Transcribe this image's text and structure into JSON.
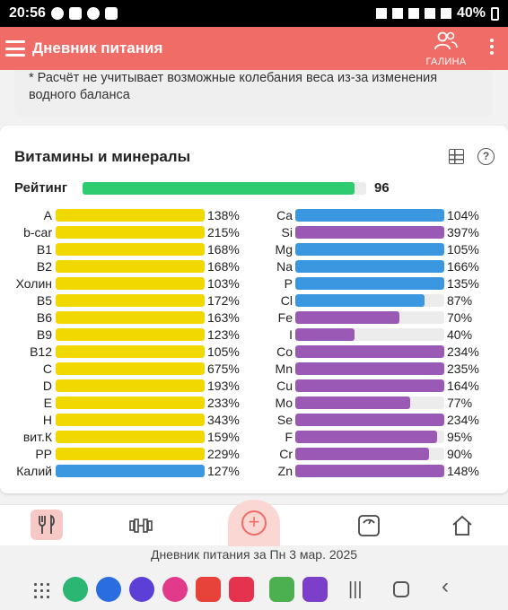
{
  "status": {
    "time": "20:56",
    "battery": "40%"
  },
  "appbar": {
    "title": "Дневник питания",
    "user": "ГАЛИНА"
  },
  "note": "* Расчёт не учитывает возможные колебания веса из-за изменения водного баланса",
  "section": {
    "title": "Витамины и минералы",
    "rating_label": "Рейтинг",
    "rating_value": "96",
    "rating_fraction": 0.96
  },
  "colors": {
    "vitamin": "#f1d800",
    "mineral_blue": "#3a97e0",
    "mineral_purple": "#9b59b6",
    "rating": "#2ecc71",
    "accent": "#ef6d66"
  },
  "vitamins": [
    {
      "name": "A",
      "pct": "138%",
      "fill": 1.0,
      "color": "#f1d800"
    },
    {
      "name": "b-car",
      "pct": "215%",
      "fill": 1.0,
      "color": "#f1d800"
    },
    {
      "name": "B1",
      "pct": "168%",
      "fill": 1.0,
      "color": "#f1d800"
    },
    {
      "name": "B2",
      "pct": "168%",
      "fill": 1.0,
      "color": "#f1d800"
    },
    {
      "name": "Холин",
      "pct": "103%",
      "fill": 1.0,
      "color": "#f1d800"
    },
    {
      "name": "B5",
      "pct": "172%",
      "fill": 1.0,
      "color": "#f1d800"
    },
    {
      "name": "B6",
      "pct": "163%",
      "fill": 1.0,
      "color": "#f1d800"
    },
    {
      "name": "B9",
      "pct": "123%",
      "fill": 1.0,
      "color": "#f1d800"
    },
    {
      "name": "B12",
      "pct": "105%",
      "fill": 1.0,
      "color": "#f1d800"
    },
    {
      "name": "C",
      "pct": "675%",
      "fill": 1.0,
      "color": "#f1d800"
    },
    {
      "name": "D",
      "pct": "193%",
      "fill": 1.0,
      "color": "#f1d800"
    },
    {
      "name": "E",
      "pct": "233%",
      "fill": 1.0,
      "color": "#f1d800"
    },
    {
      "name": "H",
      "pct": "343%",
      "fill": 1.0,
      "color": "#f1d800"
    },
    {
      "name": "вит.К",
      "pct": "159%",
      "fill": 1.0,
      "color": "#f1d800"
    },
    {
      "name": "PP",
      "pct": "229%",
      "fill": 1.0,
      "color": "#f1d800"
    },
    {
      "name": "Калий",
      "pct": "127%",
      "fill": 1.0,
      "color": "#3a97e0"
    }
  ],
  "minerals": [
    {
      "name": "Ca",
      "pct": "104%",
      "fill": 1.0,
      "color": "#3a97e0"
    },
    {
      "name": "Si",
      "pct": "397%",
      "fill": 1.0,
      "color": "#9b59b6"
    },
    {
      "name": "Mg",
      "pct": "105%",
      "fill": 1.0,
      "color": "#3a97e0"
    },
    {
      "name": "Na",
      "pct": "166%",
      "fill": 1.0,
      "color": "#3a97e0"
    },
    {
      "name": "P",
      "pct": "135%",
      "fill": 1.0,
      "color": "#3a97e0"
    },
    {
      "name": "Cl",
      "pct": "87%",
      "fill": 0.87,
      "color": "#3a97e0"
    },
    {
      "name": "Fe",
      "pct": "70%",
      "fill": 0.7,
      "color": "#9b59b6"
    },
    {
      "name": "I",
      "pct": "40%",
      "fill": 0.4,
      "color": "#9b59b6"
    },
    {
      "name": "Co",
      "pct": "234%",
      "fill": 1.0,
      "color": "#9b59b6"
    },
    {
      "name": "Mn",
      "pct": "235%",
      "fill": 1.0,
      "color": "#9b59b6"
    },
    {
      "name": "Cu",
      "pct": "164%",
      "fill": 1.0,
      "color": "#9b59b6"
    },
    {
      "name": "Mo",
      "pct": "77%",
      "fill": 0.77,
      "color": "#9b59b6"
    },
    {
      "name": "Se",
      "pct": "234%",
      "fill": 1.0,
      "color": "#9b59b6"
    },
    {
      "name": "F",
      "pct": "95%",
      "fill": 0.95,
      "color": "#9b59b6"
    },
    {
      "name": "Cr",
      "pct": "90%",
      "fill": 0.9,
      "color": "#9b59b6"
    },
    {
      "name": "Zn",
      "pct": "148%",
      "fill": 1.0,
      "color": "#9b59b6"
    }
  ],
  "icons": {
    "diet": "fork-knife-icon",
    "workout": "dumbbell-icon",
    "add": "plus-circle-icon",
    "weight": "scale-icon",
    "home": "home-icon"
  },
  "footer": "Дневник питания за Пн 3 мар. 2025"
}
